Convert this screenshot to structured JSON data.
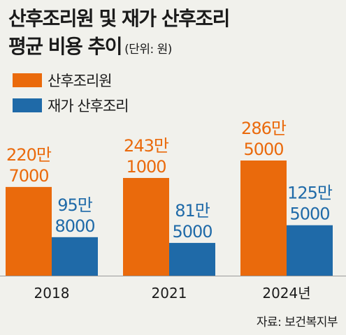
{
  "header": {
    "title_line1": "산후조리원 및 재가 산후조리",
    "title_line2": "평균 비용 추이",
    "unit": "(단위: 원)"
  },
  "source": "자료: 보건복지부",
  "colors": {
    "series0": "#ea6a0c",
    "series1": "#1f6aa8",
    "background": "#f1f1ec"
  },
  "chart_data": {
    "type": "bar",
    "categories": [
      "2018",
      "2021",
      "2024년"
    ],
    "series": [
      {
        "name": "산후조리원",
        "values": [
          2207000,
          2431000,
          2865000
        ],
        "labels": [
          [
            "220만",
            "7000"
          ],
          [
            "243만",
            "1000"
          ],
          [
            "286만",
            "5000"
          ]
        ]
      },
      {
        "name": "재가 산후조리",
        "values": [
          958000,
          815000,
          1255000
        ],
        "labels": [
          [
            "95만",
            "8000"
          ],
          [
            "81만",
            "5000"
          ],
          [
            "125만",
            "5000"
          ]
        ]
      }
    ],
    "ylim": [
      0,
      2865000
    ],
    "legend": "top-left",
    "grid": false
  }
}
